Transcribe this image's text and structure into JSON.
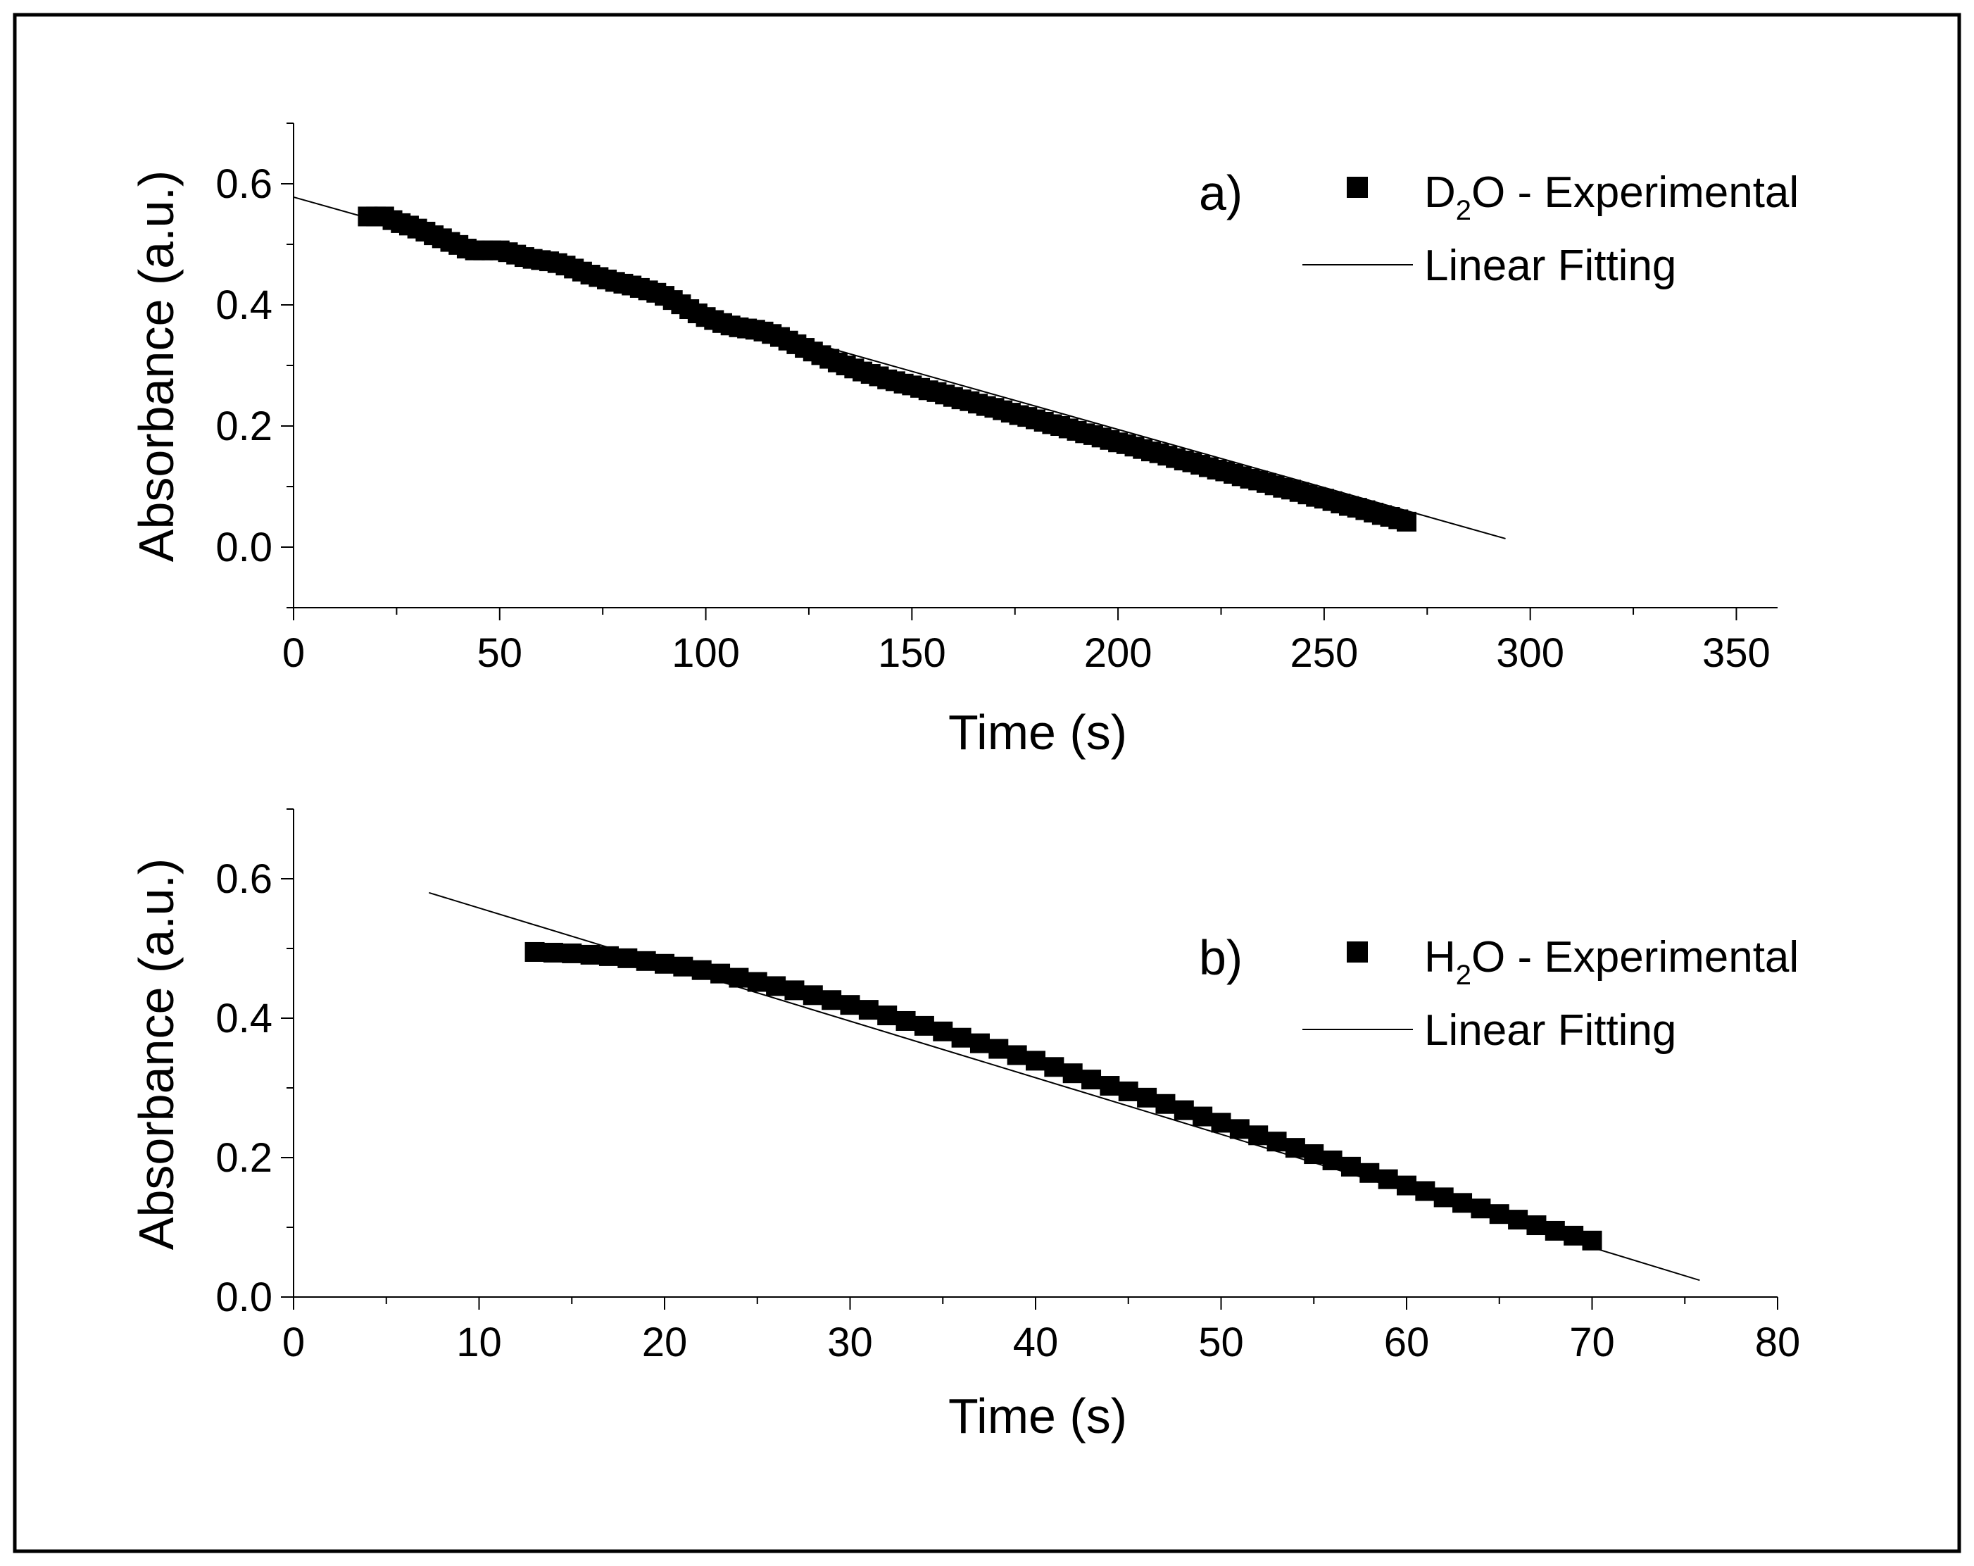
{
  "chart_data": [
    {
      "type": "scatter",
      "panel_label": "a)",
      "title": "",
      "xlabel": "Time (s)",
      "ylabel": "Absorbance (a.u.)",
      "xlim": [
        0,
        360
      ],
      "ylim": [
        -0.1,
        0.7
      ],
      "x_ticks": [
        0,
        50,
        100,
        150,
        200,
        250,
        300,
        350
      ],
      "x_tick_labels": [
        "0",
        "50",
        "100",
        "150",
        "200",
        "250",
        "300",
        "350"
      ],
      "y_ticks": [
        0.0,
        0.2,
        0.4,
        0.6
      ],
      "y_tick_labels": [
        "0.0",
        "0.2",
        "0.4",
        "0.6"
      ],
      "legend": {
        "position": "top-right",
        "entries": [
          {
            "species_main": "D",
            "species_sub": "2",
            "species_rest": "O - Experimental"
          },
          {
            "label": "Linear Fitting"
          }
        ]
      },
      "series": [
        {
          "name": "D2O - Experimental",
          "marker": "square",
          "color": "#000000",
          "x": [
            18,
            20,
            22,
            24,
            26,
            28,
            30,
            32,
            34,
            36,
            38,
            40,
            42,
            44,
            46,
            48,
            50,
            52,
            54,
            56,
            58,
            60,
            62,
            64,
            66,
            68,
            70,
            72,
            74,
            76,
            78,
            80,
            82,
            84,
            86,
            88,
            90,
            92,
            94,
            96,
            98,
            100,
            102,
            104,
            106,
            108,
            110,
            112,
            114,
            116,
            118,
            120,
            122,
            124,
            126,
            128,
            130,
            132,
            134,
            136,
            138,
            140,
            142,
            144,
            146,
            148,
            150,
            152,
            154,
            156,
            158,
            160,
            162,
            164,
            166,
            168,
            170,
            172,
            174,
            176,
            178,
            180,
            182,
            184,
            186,
            188,
            190,
            192,
            194,
            196,
            198,
            200,
            202,
            204,
            206,
            208,
            210,
            212,
            214,
            216,
            218,
            220,
            222,
            224,
            226,
            228,
            230,
            232,
            234,
            236,
            238,
            240,
            242,
            244,
            246,
            248,
            250,
            252,
            254,
            256,
            258,
            260,
            262,
            264,
            266,
            268,
            270
          ],
          "y": [
            0.546,
            0.546,
            0.546,
            0.54,
            0.535,
            0.531,
            0.526,
            0.521,
            0.515,
            0.51,
            0.504,
            0.499,
            0.493,
            0.49,
            0.49,
            0.49,
            0.49,
            0.487,
            0.483,
            0.479,
            0.476,
            0.474,
            0.472,
            0.469,
            0.465,
            0.46,
            0.455,
            0.45,
            0.446,
            0.442,
            0.438,
            0.435,
            0.432,
            0.428,
            0.424,
            0.42,
            0.415,
            0.408,
            0.401,
            0.393,
            0.386,
            0.38,
            0.375,
            0.37,
            0.366,
            0.363,
            0.361,
            0.359,
            0.356,
            0.352,
            0.347,
            0.341,
            0.335,
            0.329,
            0.323,
            0.317,
            0.311,
            0.305,
            0.3,
            0.295,
            0.29,
            0.286,
            0.282,
            0.277,
            0.274,
            0.27,
            0.267,
            0.263,
            0.259,
            0.256,
            0.252,
            0.248,
            0.244,
            0.241,
            0.237,
            0.233,
            0.23,
            0.226,
            0.222,
            0.218,
            0.215,
            0.211,
            0.207,
            0.203,
            0.2,
            0.196,
            0.192,
            0.188,
            0.185,
            0.181,
            0.177,
            0.173,
            0.17,
            0.166,
            0.162,
            0.158,
            0.155,
            0.151,
            0.147,
            0.143,
            0.14,
            0.136,
            0.132,
            0.128,
            0.125,
            0.121,
            0.117,
            0.113,
            0.11,
            0.106,
            0.102,
            0.098,
            0.095,
            0.091,
            0.087,
            0.083,
            0.08,
            0.076,
            0.072,
            0.068,
            0.065,
            0.061,
            0.057,
            0.053,
            0.05,
            0.046,
            0.042
          ]
        },
        {
          "name": "Linear Fitting",
          "line": true,
          "color": "#000000",
          "x": [
            0,
            294
          ],
          "y": [
            0.578,
            0.014
          ]
        }
      ]
    },
    {
      "type": "scatter",
      "panel_label": "b)",
      "title": "",
      "xlabel": "Time (s)",
      "ylabel": "Absorbance (a.u.)",
      "xlim": [
        0,
        80
      ],
      "ylim": [
        0.0,
        0.7
      ],
      "x_ticks": [
        0,
        10,
        20,
        30,
        40,
        50,
        60,
        70,
        80
      ],
      "x_tick_labels": [
        "0",
        "10",
        "20",
        "30",
        "40",
        "50",
        "60",
        "70",
        "80"
      ],
      "y_ticks": [
        0.0,
        0.2,
        0.4,
        0.6
      ],
      "y_tick_labels": [
        "0.0",
        "0.2",
        "0.4",
        "0.6"
      ],
      "legend": {
        "position": "right",
        "entries": [
          {
            "species_main": "H",
            "species_sub": "2",
            "species_rest": "O - Experimental"
          },
          {
            "label": "Linear Fitting"
          }
        ]
      },
      "series": [
        {
          "name": "H2O - Experimental",
          "marker": "square",
          "color": "#000000",
          "x": [
            13,
            14,
            15,
            16,
            17,
            18,
            19,
            20,
            21,
            22,
            23,
            24,
            25,
            26,
            27,
            28,
            29,
            30,
            31,
            32,
            33,
            34,
            35,
            36,
            37,
            38,
            39,
            40,
            41,
            42,
            43,
            44,
            45,
            46,
            47,
            48,
            49,
            50,
            51,
            52,
            53,
            54,
            55,
            56,
            57,
            58,
            59,
            60,
            61,
            62,
            63,
            64,
            65,
            66,
            67,
            68,
            69,
            70
          ],
          "y": [
            0.495,
            0.494,
            0.493,
            0.491,
            0.489,
            0.486,
            0.482,
            0.478,
            0.474,
            0.469,
            0.464,
            0.458,
            0.452,
            0.446,
            0.44,
            0.433,
            0.426,
            0.419,
            0.412,
            0.404,
            0.396,
            0.389,
            0.381,
            0.372,
            0.364,
            0.356,
            0.347,
            0.339,
            0.33,
            0.321,
            0.312,
            0.303,
            0.295,
            0.286,
            0.277,
            0.268,
            0.259,
            0.25,
            0.241,
            0.232,
            0.223,
            0.214,
            0.205,
            0.196,
            0.187,
            0.178,
            0.169,
            0.16,
            0.152,
            0.143,
            0.135,
            0.127,
            0.119,
            0.111,
            0.103,
            0.095,
            0.088,
            0.081
          ]
        },
        {
          "name": "Linear Fitting",
          "line": true,
          "color": "#000000",
          "x": [
            7.3,
            75.8
          ],
          "y": [
            0.58,
            0.024
          ]
        }
      ]
    }
  ]
}
